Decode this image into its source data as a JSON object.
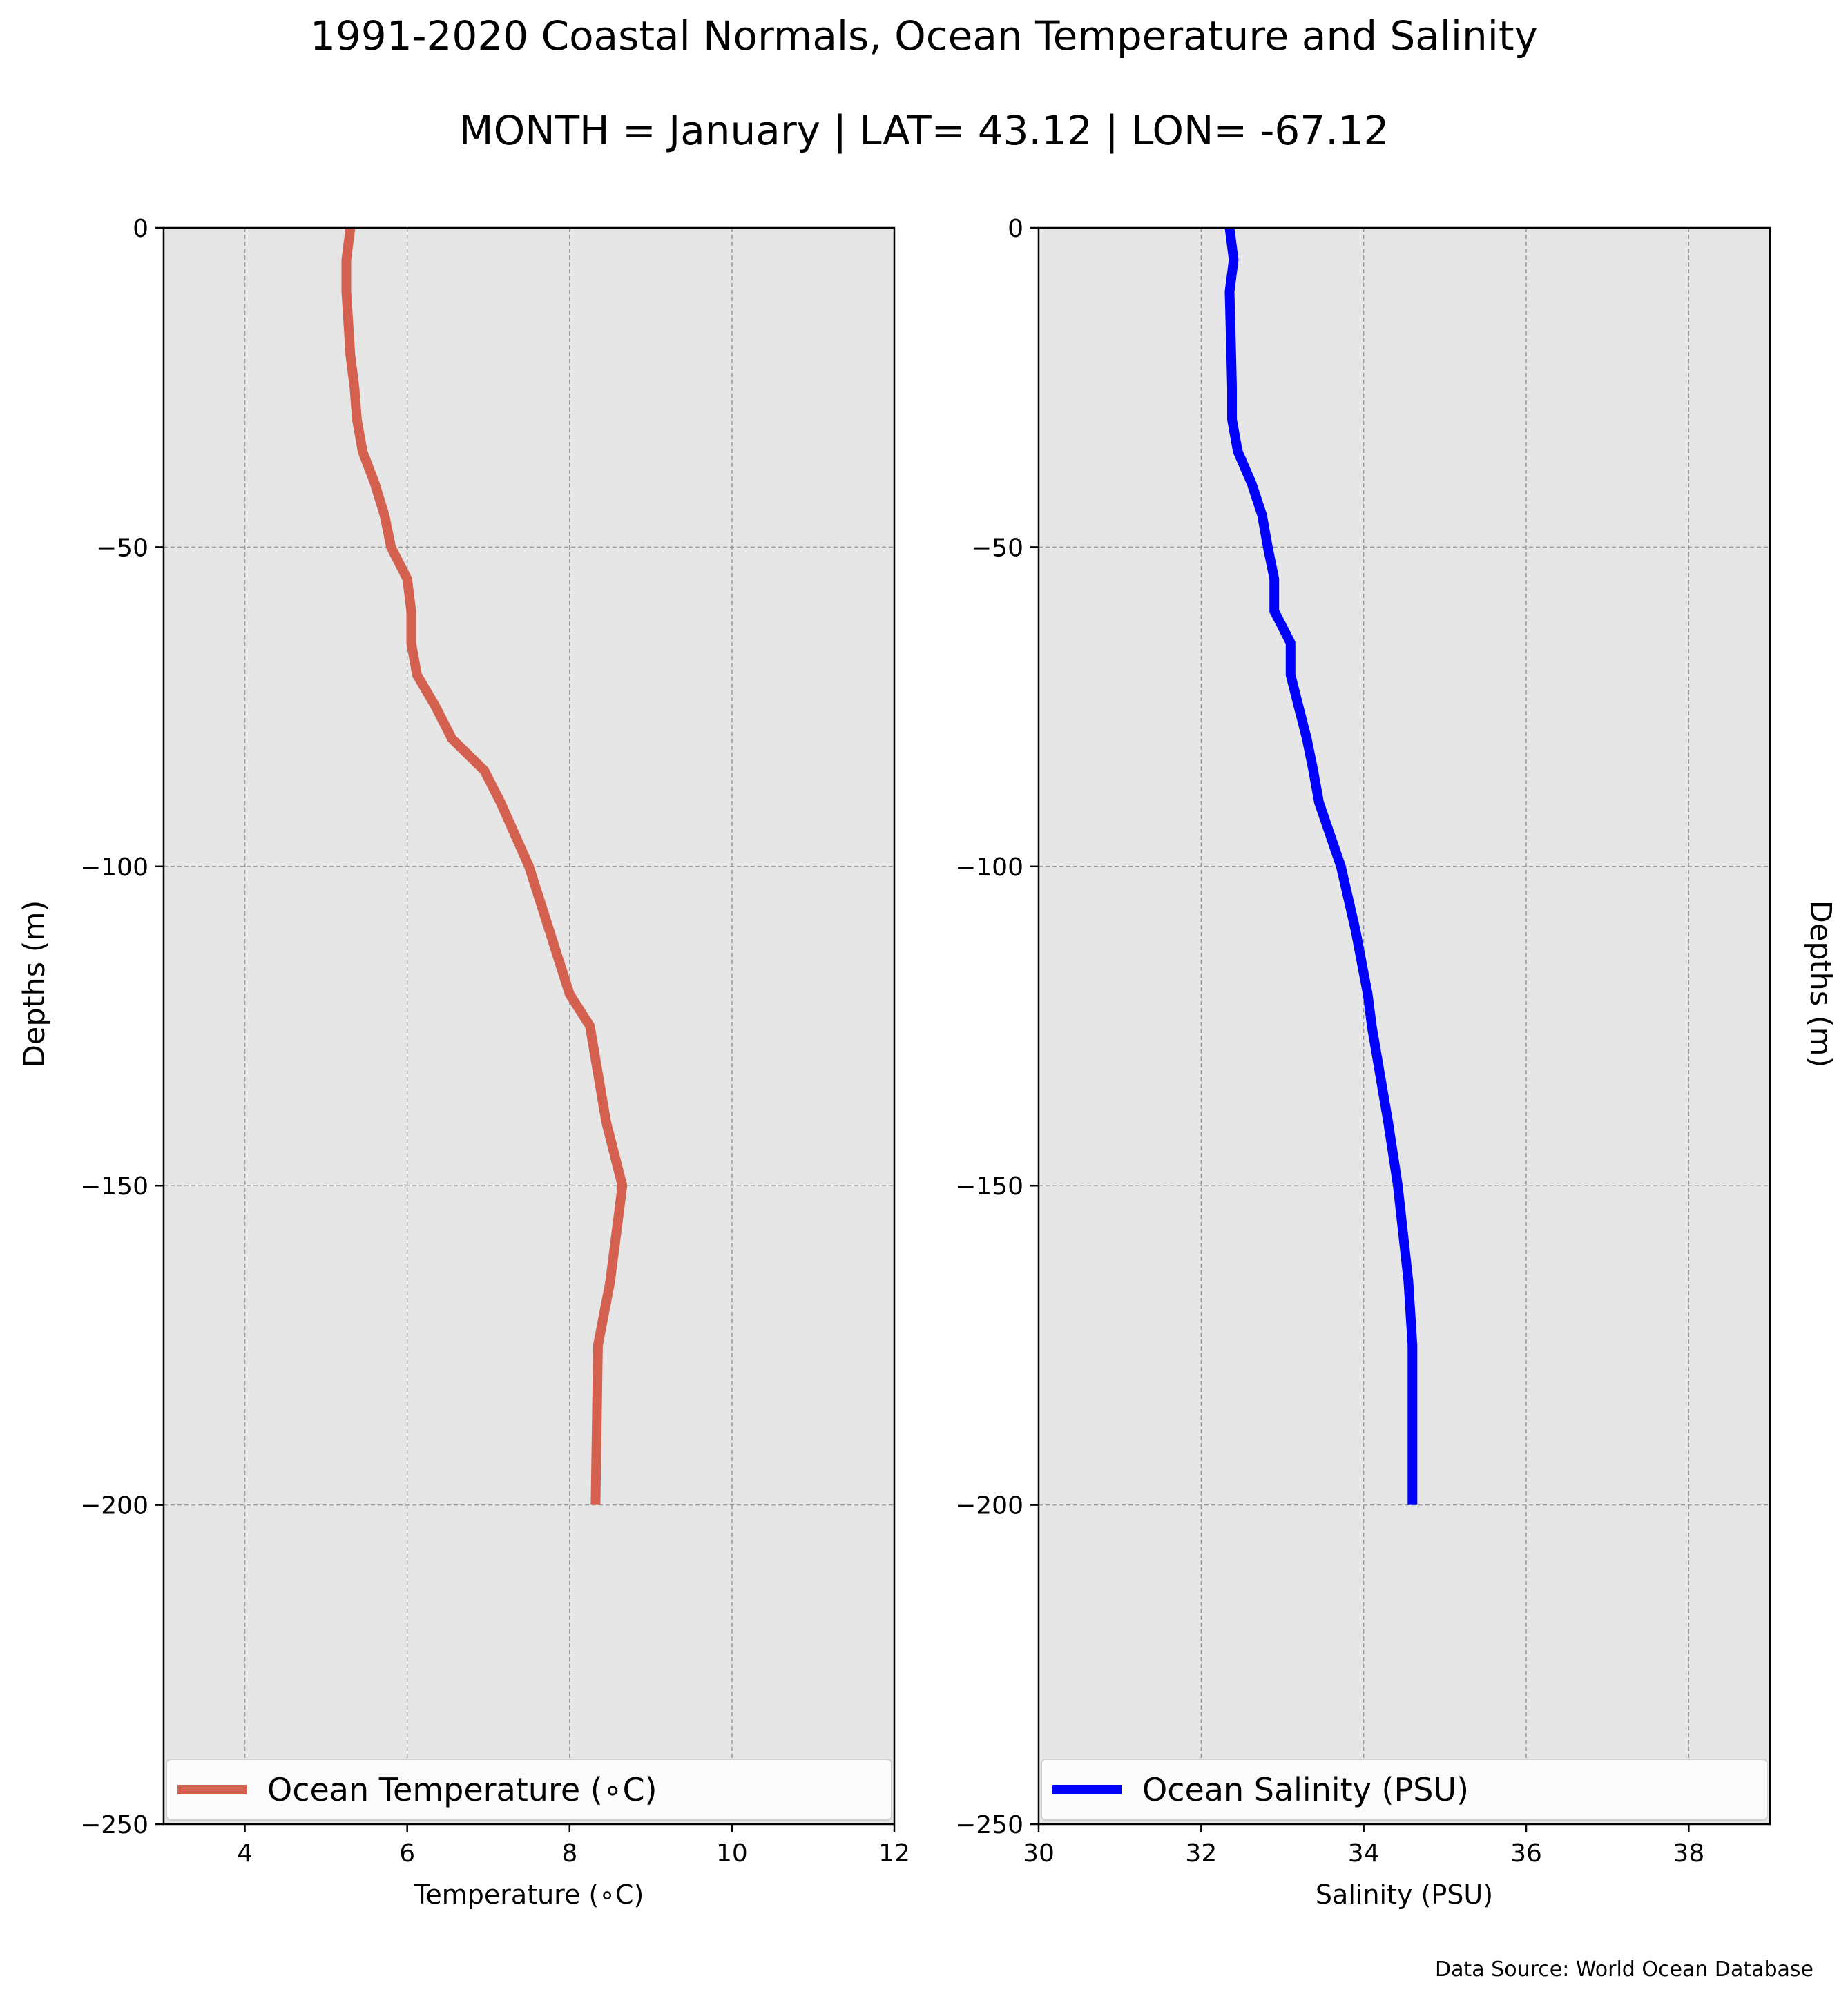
{
  "title": "1991-2020 Coastal Normals, Ocean Temperature and Salinity",
  "subtitle": "MONTH = January | LAT= 43.12 | LON= -67.12",
  "source_note": "Data Source: World Ocean Database",
  "colors": {
    "background": "#e6e6e6",
    "grid": "#9a9a9a",
    "temperature": "#d46150",
    "salinity": "#0000ff"
  },
  "chart_data": [
    {
      "type": "line",
      "xlabel": "Temperature ($^\\circ$C)",
      "xlabel_display": "Temperature (∘C)",
      "ylabel": "Depths (m)",
      "ylabel_position": "left",
      "xlim": [
        3,
        12
      ],
      "ylim": [
        -250,
        0
      ],
      "xticks": [
        4,
        6,
        8,
        10,
        12
      ],
      "yticks": [
        0,
        -50,
        -100,
        -150,
        -200,
        -250
      ],
      "grid": true,
      "legend_position": "lower",
      "series": [
        {
          "name": "Ocean Temperature (∘C)",
          "color": "#d46150",
          "points": [
            [
              5.3,
              0
            ],
            [
              5.25,
              -5
            ],
            [
              5.25,
              -10
            ],
            [
              5.3,
              -20
            ],
            [
              5.35,
              -25
            ],
            [
              5.38,
              -30
            ],
            [
              5.45,
              -35
            ],
            [
              5.6,
              -40
            ],
            [
              5.72,
              -45
            ],
            [
              5.8,
              -50
            ],
            [
              6.0,
              -55
            ],
            [
              6.05,
              -60
            ],
            [
              6.05,
              -65
            ],
            [
              6.12,
              -70
            ],
            [
              6.35,
              -75
            ],
            [
              6.55,
              -80
            ],
            [
              6.95,
              -85
            ],
            [
              7.15,
              -90
            ],
            [
              7.5,
              -100
            ],
            [
              7.75,
              -110
            ],
            [
              8.0,
              -120
            ],
            [
              8.25,
              -125
            ],
            [
              8.45,
              -140
            ],
            [
              8.65,
              -150
            ],
            [
              8.5,
              -165
            ],
            [
              8.35,
              -175
            ],
            [
              8.32,
              -200
            ]
          ]
        }
      ]
    },
    {
      "type": "line",
      "xlabel": "Salinity (PSU)",
      "ylabel": "Depths (m)",
      "ylabel_position": "right",
      "xlim": [
        30,
        39
      ],
      "ylim": [
        -250,
        0
      ],
      "xticks": [
        30,
        32,
        34,
        36,
        38
      ],
      "yticks": [
        0,
        -50,
        -100,
        -150,
        -200,
        -250
      ],
      "grid": true,
      "legend_position": "lower",
      "series": [
        {
          "name": "Ocean Salinity (PSU)",
          "color": "#0000ff",
          "points": [
            [
              32.35,
              0
            ],
            [
              32.4,
              -5
            ],
            [
              32.35,
              -10
            ],
            [
              32.37,
              -20
            ],
            [
              32.38,
              -25
            ],
            [
              32.38,
              -30
            ],
            [
              32.45,
              -35
            ],
            [
              32.62,
              -40
            ],
            [
              32.75,
              -45
            ],
            [
              32.82,
              -50
            ],
            [
              32.9,
              -55
            ],
            [
              32.9,
              -60
            ],
            [
              33.1,
              -65
            ],
            [
              33.1,
              -70
            ],
            [
              33.2,
              -75
            ],
            [
              33.3,
              -80
            ],
            [
              33.38,
              -85
            ],
            [
              33.45,
              -90
            ],
            [
              33.72,
              -100
            ],
            [
              33.9,
              -110
            ],
            [
              34.05,
              -120
            ],
            [
              34.1,
              -125
            ],
            [
              34.3,
              -140
            ],
            [
              34.42,
              -150
            ],
            [
              34.55,
              -165
            ],
            [
              34.6,
              -175
            ],
            [
              34.6,
              -200
            ]
          ]
        }
      ]
    }
  ]
}
